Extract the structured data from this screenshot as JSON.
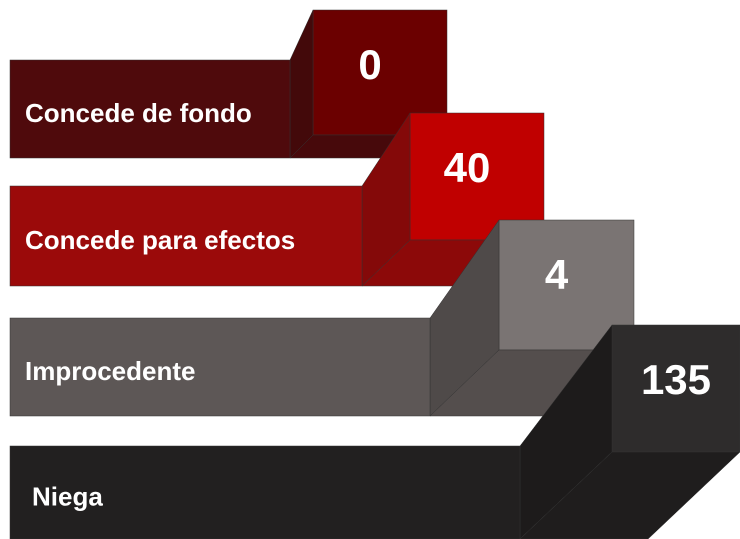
{
  "items": [
    {
      "label": "Concede de fondo",
      "value": 0,
      "color": "#4f0a0c",
      "box_color": "#6b0000"
    },
    {
      "label": "Concede para efectos",
      "value": 40,
      "color": "#9b0a0a",
      "box_color": "#c00000"
    },
    {
      "label": "Improcedente",
      "value": 4,
      "color": "#5d5756",
      "box_color": "#7a7473"
    },
    {
      "label": "Niega",
      "value": 135,
      "color": "#222020",
      "box_color": "#2e2c2c"
    }
  ]
}
